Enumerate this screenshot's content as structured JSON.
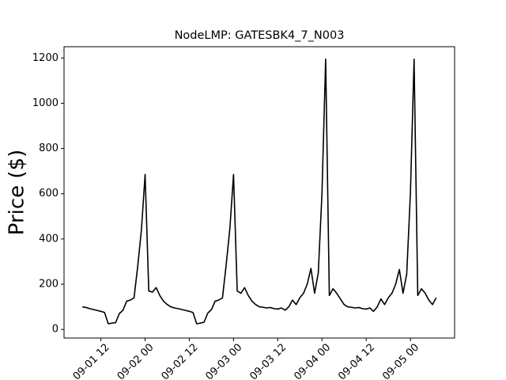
{
  "chart_data": {
    "type": "line",
    "title": "NodeLMP: GATESBK4_7_N003",
    "y_label": "Price ($)",
    "color": "#000000",
    "x": [
      "09-01 07",
      "09-01 08",
      "09-01 09",
      "09-01 10",
      "09-01 11",
      "09-01 12",
      "09-01 13",
      "09-01 14",
      "09-01 15",
      "09-01 16",
      "09-01 17",
      "09-01 18",
      "09-01 19",
      "09-01 20",
      "09-01 21",
      "09-01 22",
      "09-01 23",
      "09-02 00",
      "09-02 01",
      "09-02 02",
      "09-02 03",
      "09-02 04",
      "09-02 05",
      "09-02 06",
      "09-02 07",
      "09-02 08",
      "09-02 09",
      "09-02 10",
      "09-02 11",
      "09-02 12",
      "09-02 13",
      "09-02 14",
      "09-02 15",
      "09-02 16",
      "09-02 17",
      "09-02 18",
      "09-02 19",
      "09-02 20",
      "09-02 21",
      "09-02 22",
      "09-02 23",
      "09-03 00",
      "09-03 01",
      "09-03 02",
      "09-03 03",
      "09-03 04",
      "09-03 05",
      "09-03 06",
      "09-03 07",
      "09-03 08",
      "09-03 09",
      "09-03 10",
      "09-03 11",
      "09-03 12",
      "09-03 13",
      "09-03 14",
      "09-03 15",
      "09-03 16",
      "09-03 17",
      "09-03 18",
      "09-03 19",
      "09-03 20",
      "09-03 21",
      "09-03 22",
      "09-03 23",
      "09-04 00",
      "09-04 01",
      "09-04 02",
      "09-04 03",
      "09-04 04",
      "09-04 05",
      "09-04 06",
      "09-04 07",
      "09-04 08",
      "09-04 09",
      "09-04 10",
      "09-04 11",
      "09-04 12",
      "09-04 13",
      "09-04 14",
      "09-04 15",
      "09-04 16",
      "09-04 17",
      "09-04 18",
      "09-04 19",
      "09-04 20",
      "09-04 21",
      "09-04 22",
      "09-04 23",
      "09-05 00",
      "09-05 01",
      "09-05 02",
      "09-05 03",
      "09-05 04",
      "09-05 05",
      "09-05 06",
      "09-05 07"
    ],
    "values": [
      100,
      97,
      92,
      88,
      84,
      80,
      75,
      25,
      28,
      30,
      70,
      85,
      125,
      130,
      140,
      280,
      440,
      685,
      170,
      165,
      185,
      150,
      125,
      110,
      100,
      95,
      92,
      88,
      84,
      80,
      75,
      25,
      28,
      32,
      72,
      88,
      125,
      130,
      140,
      285,
      445,
      685,
      170,
      160,
      185,
      150,
      125,
      110,
      100,
      98,
      95,
      97,
      92,
      90,
      95,
      85,
      100,
      130,
      110,
      140,
      160,
      200,
      270,
      160,
      250,
      600,
      1195,
      150,
      180,
      160,
      135,
      110,
      100,
      98,
      95,
      97,
      92,
      90,
      95,
      80,
      100,
      135,
      110,
      140,
      160,
      200,
      265,
      160,
      245,
      600,
      1195,
      150,
      180,
      160,
      130,
      110,
      140
    ],
    "xlim": [
      "09-01 02",
      "09-05 12"
    ],
    "xticks": [
      "09-01 12",
      "09-02 00",
      "09-02 12",
      "09-03 00",
      "09-03 12",
      "09-04 00",
      "09-04 12",
      "09-05 00"
    ],
    "ylim": [
      -38,
      1250
    ],
    "yticks": [
      0,
      200,
      400,
      600,
      800,
      1000,
      1200
    ]
  }
}
